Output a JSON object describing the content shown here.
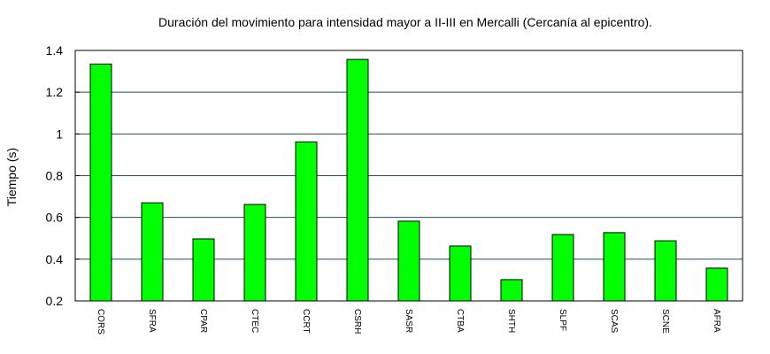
{
  "chart_data": {
    "type": "bar",
    "title": "Duración del movimiento para intensidad mayor a II-III en Mercalli (Cercanía al epicentro).",
    "xlabel": "",
    "ylabel": "Tiempo (s)",
    "ylim": [
      0.2,
      1.4
    ],
    "yticks": [
      0.2,
      0.4,
      0.6,
      0.8,
      1,
      1.2,
      1.4
    ],
    "ytick_labels": [
      "0.2",
      "0.4",
      "0.6",
      "0.8",
      "1",
      "1.2",
      "1.4"
    ],
    "categories": [
      "CORS",
      "SFRA",
      "CPAR",
      "CTEC",
      "CCRT",
      "CSRH",
      "SASR",
      "CTBA",
      "SHTH",
      "SLPF",
      "SCAS",
      "SCNE",
      "AFRA"
    ],
    "values": [
      1.335,
      0.67,
      0.497,
      0.662,
      0.962,
      1.357,
      0.582,
      0.463,
      0.302,
      0.518,
      0.527,
      0.488,
      0.357
    ],
    "grid": true,
    "legend": "none",
    "colors": {
      "bar": "#00ff00",
      "grid": "#1f4e5f",
      "axis": "#000000"
    }
  }
}
